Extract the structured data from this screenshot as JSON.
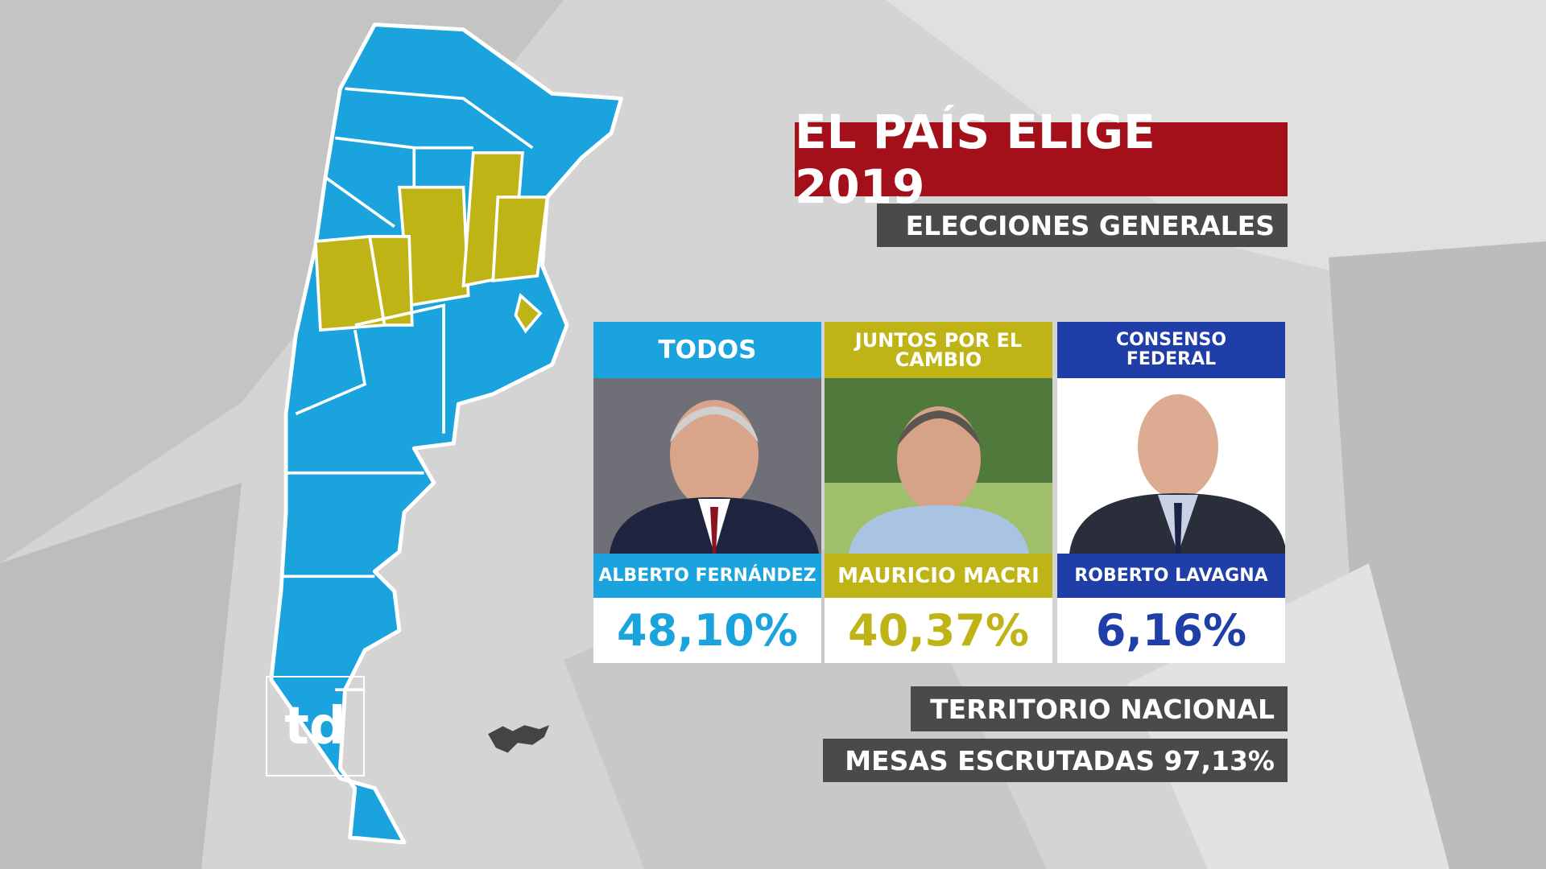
{
  "header": {
    "title": "EL PAÍS ELIGE 2019",
    "subtitle": "ELECCIONES GENERALES"
  },
  "candidates": [
    {
      "party": "TODOS",
      "name": "ALBERTO FERNÁNDEZ",
      "percent": "48,10%"
    },
    {
      "party": "JUNTOS POR EL CAMBIO",
      "name": "MAURICIO MACRI",
      "percent": "40,37%"
    },
    {
      "party": "CONSENSO FEDERAL",
      "name": "ROBERTO LAVAGNA",
      "percent": "6,16%"
    }
  ],
  "footer": {
    "scope": "TERRITORIO NACIONAL",
    "counted": "MESAS ESCRUTADAS 97,13%"
  },
  "logo": "td"
}
